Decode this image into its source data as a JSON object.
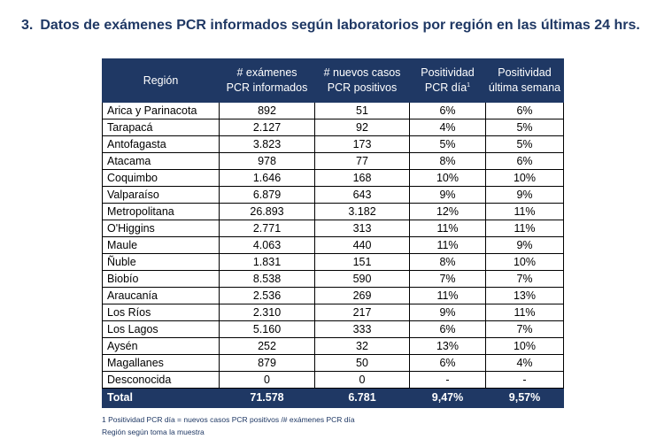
{
  "title": {
    "number": "3.",
    "text": "Datos de exámenes PCR informados según laboratorios por región en las últimas 24 hrs."
  },
  "table": {
    "headers": {
      "region": "Región",
      "examenes_line1": "# exámenes",
      "examenes_line2": "PCR informados",
      "casos_line1": "# nuevos casos",
      "casos_line2": "PCR positivos",
      "positividad_dia_line1": "Positividad",
      "positividad_dia_line2": "PCR día",
      "positividad_dia_sup": "1",
      "positividad_semana_line1": "Positividad",
      "positividad_semana_line2": "última semana"
    },
    "rows": [
      [
        "Arica y Parinacota",
        "892",
        "51",
        "6%",
        "6%"
      ],
      [
        "Tarapacá",
        "2.127",
        "92",
        "4%",
        "5%"
      ],
      [
        "Antofagasta",
        "3.823",
        "173",
        "5%",
        "5%"
      ],
      [
        "Atacama",
        "978",
        "77",
        "8%",
        "6%"
      ],
      [
        "Coquimbo",
        "1.646",
        "168",
        "10%",
        "10%"
      ],
      [
        "Valparaíso",
        "6.879",
        "643",
        "9%",
        "9%"
      ],
      [
        "Metropolitana",
        "26.893",
        "3.182",
        "12%",
        "11%"
      ],
      [
        "O'Higgins",
        "2.771",
        "313",
        "11%",
        "11%"
      ],
      [
        "Maule",
        "4.063",
        "440",
        "11%",
        "9%"
      ],
      [
        "Ñuble",
        "1.831",
        "151",
        "8%",
        "10%"
      ],
      [
        "Biobío",
        "8.538",
        "590",
        "7%",
        "7%"
      ],
      [
        "Araucanía",
        "2.536",
        "269",
        "11%",
        "13%"
      ],
      [
        "Los Ríos",
        "2.310",
        "217",
        "9%",
        "11%"
      ],
      [
        "Los Lagos",
        "5.160",
        "333",
        "6%",
        "7%"
      ],
      [
        "Aysén",
        "252",
        "32",
        "13%",
        "10%"
      ],
      [
        "Magallanes",
        "879",
        "50",
        "6%",
        "4%"
      ],
      [
        "Desconocida",
        "0",
        "0",
        "-",
        "-"
      ]
    ],
    "total": [
      "Total",
      "71.578",
      "6.781",
      "9,47%",
      "9,57%"
    ]
  },
  "notes": {
    "footnote": "1 Positividad PCR día = nuevos casos PCR positivos /# exámenes PCR día",
    "region_note": "Región según toma la muestra"
  },
  "colors": {
    "header_bg": "#1f3864",
    "title": "#1f3864"
  }
}
